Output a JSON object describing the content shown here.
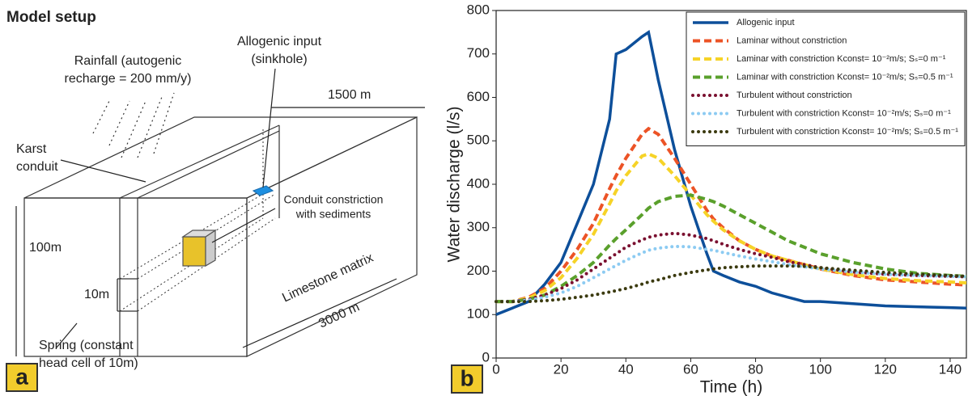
{
  "diagram": {
    "title": "Model setup",
    "panel_label": "a",
    "rainfall": [
      "Rainfall (autogenic",
      "recharge = 200 mm/y)"
    ],
    "allogenic": [
      "Allogenic input",
      "(sinkhole)"
    ],
    "width_label": "1500 m",
    "conduit": [
      "Karst",
      "conduit"
    ],
    "constriction": [
      "Conduit constriction",
      "with sediments"
    ],
    "height_label": "100m",
    "conduit_height": "10m",
    "matrix": "Limestone matrix",
    "length_label": "3000 m",
    "spring": [
      "Spring (constant",
      "head cell of 10m)"
    ]
  },
  "chart_data": {
    "type": "line",
    "panel_label": "b",
    "x_label": "Time (h)",
    "y_label": "Water discharge (l/s)",
    "x": [
      0,
      5,
      10,
      15,
      20,
      25,
      30,
      35,
      37,
      40,
      45,
      47,
      50,
      55,
      60,
      65,
      67,
      70,
      75,
      80,
      85,
      90,
      95,
      100,
      110,
      120,
      130,
      140,
      145
    ],
    "xlim": [
      0,
      145
    ],
    "xticks": [
      0,
      20,
      40,
      60,
      80,
      100,
      120,
      140
    ],
    "ylim": [
      0,
      800
    ],
    "yticks": [
      0,
      100,
      200,
      300,
      400,
      500,
      600,
      700,
      800
    ],
    "legend": "upper right",
    "series": [
      {
        "name": "Allogenic input",
        "color": "#0d4f9a",
        "style": "solid",
        "values": [
          100,
          115,
          130,
          170,
          220,
          310,
          400,
          550,
          700,
          710,
          740,
          750,
          640,
          480,
          350,
          240,
          200,
          190,
          175,
          165,
          150,
          140,
          130,
          130,
          125,
          120,
          118,
          116,
          115
        ]
      },
      {
        "name": "Laminar without constriction",
        "color": "#ec5326",
        "style": "dashed",
        "values": [
          130,
          130,
          140,
          160,
          200,
          250,
          310,
          390,
          420,
          460,
          515,
          528,
          515,
          460,
          400,
          340,
          320,
          300,
          270,
          250,
          235,
          225,
          215,
          205,
          190,
          180,
          175,
          170,
          168
        ]
      },
      {
        "name": "Laminar with constriction Kconst= 10⁻²m/s; Sₛ=0 m⁻¹",
        "color": "#f6d327",
        "style": "dashed",
        "values": [
          130,
          130,
          138,
          155,
          185,
          230,
          285,
          355,
          385,
          420,
          465,
          470,
          460,
          420,
          375,
          330,
          315,
          295,
          270,
          250,
          235,
          225,
          215,
          205,
          192,
          183,
          178,
          175,
          173
        ]
      },
      {
        "name": "Laminar with constriction Kconst= 10⁻²m/s; Sₛ=0.5 m⁻¹",
        "color": "#5aa02c",
        "style": "dashed",
        "values": [
          130,
          130,
          135,
          145,
          165,
          190,
          220,
          260,
          275,
          295,
          330,
          345,
          360,
          372,
          375,
          365,
          360,
          350,
          330,
          310,
          290,
          270,
          255,
          240,
          220,
          205,
          195,
          190,
          188
        ]
      },
      {
        "name": "Turbulent without constriction",
        "color": "#7a1030",
        "style": "dotted",
        "values": [
          130,
          130,
          135,
          145,
          160,
          180,
          205,
          230,
          240,
          255,
          272,
          278,
          283,
          287,
          283,
          275,
          270,
          262,
          250,
          240,
          232,
          222,
          215,
          208,
          198,
          193,
          190,
          188,
          187
        ]
      },
      {
        "name": "Turbulent with constriction Kconst= 10⁻²m/s; Sₛ=0 m⁻¹",
        "color": "#8ccbf2",
        "style": "dotted",
        "values": [
          130,
          130,
          133,
          140,
          150,
          165,
          185,
          205,
          213,
          225,
          242,
          248,
          253,
          257,
          256,
          250,
          248,
          243,
          235,
          228,
          222,
          215,
          210,
          205,
          198,
          193,
          190,
          188,
          187
        ]
      },
      {
        "name": "Turbulent with constriction Kconst= 10⁻²m/s; Sₛ=0.5 m⁻¹",
        "color": "#3b3a0f",
        "style": "dotted",
        "values": [
          130,
          130,
          130,
          132,
          135,
          140,
          145,
          152,
          155,
          160,
          170,
          175,
          180,
          190,
          197,
          203,
          205,
          208,
          210,
          212,
          212,
          212,
          211,
          208,
          202,
          197,
          193,
          190,
          188
        ]
      }
    ]
  }
}
